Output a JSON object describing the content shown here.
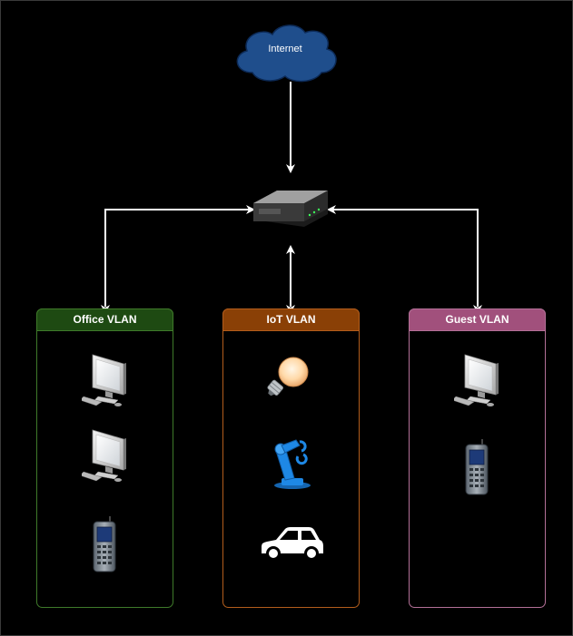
{
  "internet": {
    "label": "Internet",
    "color": "#1f4e8c"
  },
  "router": {
    "icon": "router-icon"
  },
  "vlans": [
    {
      "key": "office",
      "title": "Office VLAN",
      "header_color": "#1e4a12",
      "border_color": "#3f7a2a",
      "devices": [
        "desktop-computer-icon",
        "desktop-computer-icon",
        "mobile-phone-icon"
      ]
    },
    {
      "key": "iot",
      "title": "IoT VLAN",
      "header_color": "#8a4006",
      "border_color": "#b35d1c",
      "devices": [
        "light-bulb-icon",
        "robot-arm-icon",
        "car-icon"
      ]
    },
    {
      "key": "guest",
      "title": "Guest VLAN",
      "header_color": "#a1507c",
      "border_color": "#b37097",
      "devices": [
        "desktop-computer-icon",
        "mobile-phone-icon"
      ]
    }
  ],
  "connection_color": "#ffffff"
}
